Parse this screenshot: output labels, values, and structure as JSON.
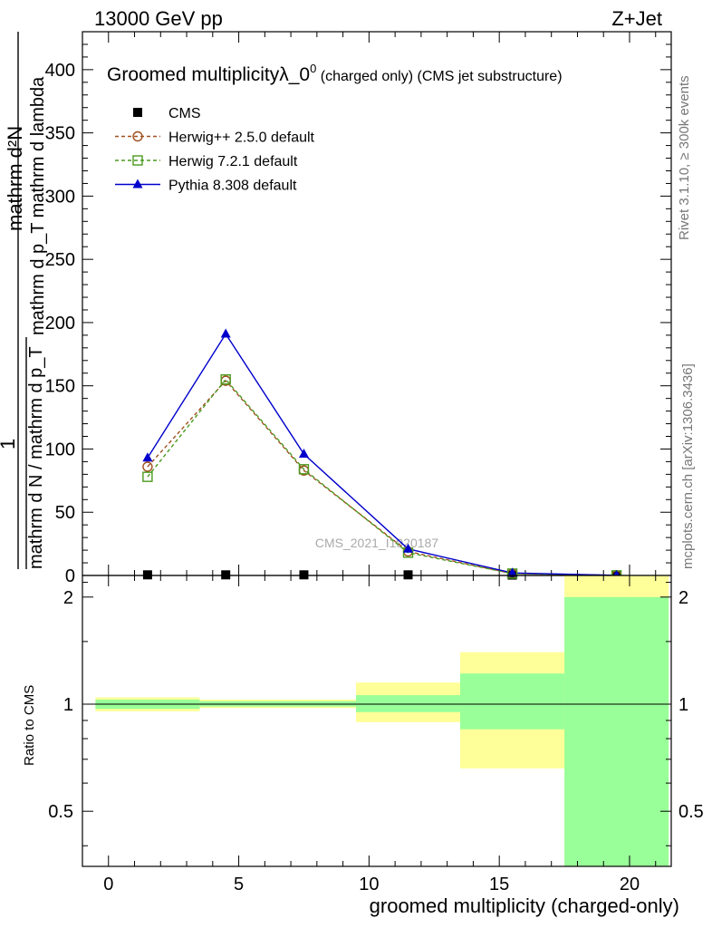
{
  "header": {
    "energy_label": "13000 GeV pp",
    "process_label": "Z+Jet"
  },
  "side_labels": {
    "rivet": "Rivet 3.1.10, ≥ 300k events",
    "mcplots": "mcplots.cern.ch [arXiv:1306.3436]"
  },
  "chart_data": [
    {
      "panel": "main",
      "type": "line",
      "title_main": "Groomed multiplicityλ_0",
      "title_sup": "0",
      "title_suffix": " (charged only) (CMS jet substructure)",
      "watermark": "CMS_2021_I1920187",
      "xlabel": "groomed multiplicity (charged-only)",
      "ylabel_top": "mathrm d²N",
      "ylabel_mid": "mathrm d p_T mathrm d lambda",
      "ylabel_num": "1",
      "ylabel_bottom": "mathrm d N / mathrm d p_T",
      "xlim": [
        -1,
        21.6
      ],
      "ylim": [
        0,
        430
      ],
      "yticks": [
        0,
        50,
        100,
        150,
        200,
        250,
        300,
        350,
        400
      ],
      "xticks": [
        0,
        5,
        10,
        15,
        20
      ],
      "series": [
        {
          "name": "CMS",
          "marker": "square-filled",
          "color": "#000000",
          "x": [
            1.5,
            4.5,
            7.5,
            11.5,
            15.5,
            19.5
          ],
          "y": [
            0.5,
            0.5,
            0.5,
            0.5,
            0.3,
            0.1
          ]
        },
        {
          "name": "Herwig++ 2.5.0 default",
          "marker": "circle-open",
          "color": "#a0501e",
          "dash": true,
          "x": [
            1.5,
            4.5,
            7.5,
            11.5,
            15.5,
            19.5
          ],
          "y": [
            86,
            154,
            83,
            19,
            1.5,
            0.1
          ]
        },
        {
          "name": "Herwig 7.2.1 default",
          "marker": "square-open",
          "color": "#4a9a1e",
          "dash": true,
          "x": [
            1.5,
            4.5,
            7.5,
            11.5,
            15.5,
            19.5
          ],
          "y": [
            78,
            155,
            84,
            18,
            1.5,
            0.1
          ]
        },
        {
          "name": "Pythia 8.308 default",
          "marker": "triangle-filled",
          "color": "#0000cc",
          "dash": false,
          "x": [
            1.5,
            4.5,
            7.5,
            11.5,
            15.5,
            19.5
          ],
          "y": [
            93,
            191,
            96,
            21,
            2,
            0.1
          ]
        }
      ]
    },
    {
      "panel": "ratio",
      "type": "area",
      "ylabel": "Ratio to CMS",
      "ylim": [
        0.35,
        2.3
      ],
      "yticks": [
        0.5,
        1,
        2
      ],
      "ytick_labels": [
        "0.5",
        "1",
        "2"
      ],
      "reference": 1,
      "bands": [
        {
          "x_low": -0.5,
          "x_high": 3.5,
          "stat_low": 0.97,
          "stat_high": 1.03,
          "tot_low": 0.955,
          "tot_high": 1.045
        },
        {
          "x_low": 3.5,
          "x_high": 9.5,
          "stat_low": 0.985,
          "stat_high": 1.02,
          "tot_low": 0.975,
          "tot_high": 1.03
        },
        {
          "x_low": 9.5,
          "x_high": 13.5,
          "stat_low": 0.95,
          "stat_high": 1.06,
          "tot_low": 0.89,
          "tot_high": 1.15
        },
        {
          "x_low": 13.5,
          "x_high": 17.5,
          "stat_low": 0.85,
          "stat_high": 1.22,
          "tot_low": 0.66,
          "tot_high": 1.4
        },
        {
          "x_low": 17.5,
          "x_high": 21.5,
          "stat_low": 0.35,
          "stat_high": 2.0,
          "tot_low": 0.35,
          "tot_high": 2.3
        }
      ],
      "band_colors": {
        "total": "#ffff99",
        "stat": "#99ff99"
      }
    }
  ]
}
